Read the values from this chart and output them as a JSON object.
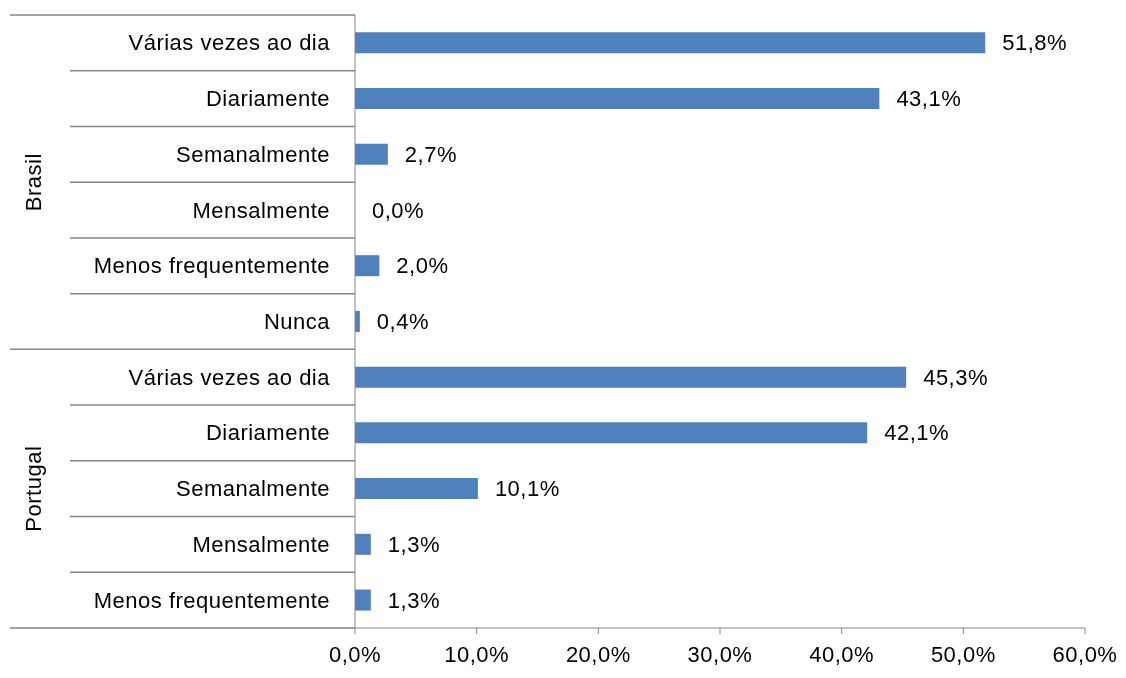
{
  "chart_data": {
    "type": "bar",
    "orientation": "horizontal",
    "categories": [
      "Várias vezes ao dia",
      "Diariamente",
      "Semanalmente",
      "Mensalmente",
      "Menos frequentemente",
      "Nunca",
      "Várias vezes ao dia",
      "Diariamente",
      "Semanalmente",
      "Mensalmente",
      "Menos frequentemente"
    ],
    "values": [
      51.8,
      43.1,
      2.7,
      0.0,
      2.0,
      0.4,
      45.3,
      42.1,
      10.1,
      1.3,
      1.3
    ],
    "value_labels": [
      "51,8%",
      "43,1%",
      "2,7%",
      "0,0%",
      "2,0%",
      "0,4%",
      "45,3%",
      "42,1%",
      "10,1%",
      "1,3%",
      "1,3%"
    ],
    "color": "#4f81bd",
    "xlim": [
      0,
      60
    ],
    "xticks": [
      {
        "value": 0,
        "label": "0,0%"
      },
      {
        "value": 10,
        "label": "10,0%"
      },
      {
        "value": 20,
        "label": "20,0%"
      },
      {
        "value": 30,
        "label": "30,0%"
      },
      {
        "value": 40,
        "label": "40,0%"
      },
      {
        "value": 50,
        "label": "50,0%"
      },
      {
        "value": 60,
        "label": "60,0%"
      }
    ],
    "annotations": [
      "Brasil",
      "Portugal"
    ]
  }
}
